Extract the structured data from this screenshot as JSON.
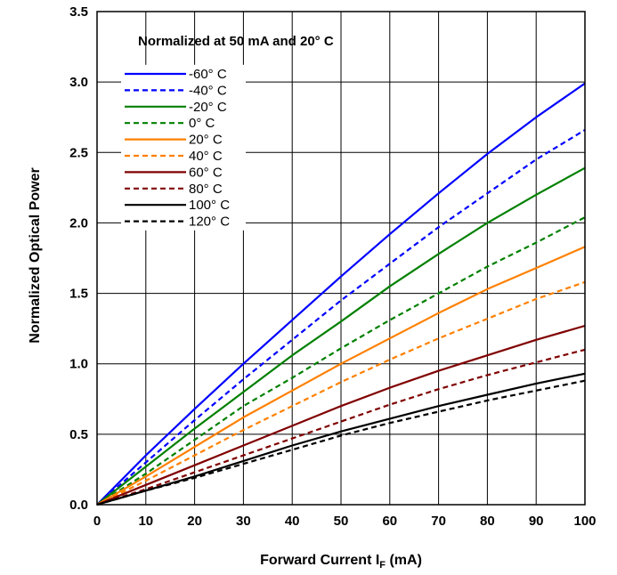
{
  "chart_data": {
    "type": "line",
    "title": "",
    "annotation": "Normalized at 50 mA and 20° C",
    "xlabel": "Forward Current I",
    "xlabel_sub": "F",
    "xlabel_unit": " (mA)",
    "ylabel": "Normalized Optical Power",
    "xlim": [
      0,
      100
    ],
    "ylim": [
      0,
      3.5
    ],
    "xticks": [
      0,
      10,
      20,
      30,
      40,
      50,
      60,
      70,
      80,
      90,
      100
    ],
    "yticks": [
      "0.0",
      "0.5",
      "1.0",
      "1.5",
      "2.0",
      "2.5",
      "3.0",
      "3.5"
    ],
    "grid": true,
    "legend_position": "upper-left",
    "x": [
      0,
      10,
      20,
      30,
      40,
      50,
      60,
      70,
      80,
      90,
      100
    ],
    "series": [
      {
        "name": "-60° C",
        "color": "#0000ff",
        "dash": "solid",
        "values": [
          0,
          0.35,
          0.68,
          1.0,
          1.31,
          1.62,
          1.92,
          2.21,
          2.49,
          2.75,
          2.99
        ]
      },
      {
        "name": "-40° C",
        "color": "#0000ff",
        "dash": "dashed",
        "values": [
          0,
          0.3,
          0.6,
          0.89,
          1.17,
          1.45,
          1.71,
          1.97,
          2.21,
          2.45,
          2.66
        ]
      },
      {
        "name": "-20° C",
        "color": "#008000",
        "dash": "solid",
        "values": [
          0,
          0.27,
          0.54,
          0.8,
          1.06,
          1.3,
          1.55,
          1.78,
          2.0,
          2.2,
          2.39
        ]
      },
      {
        "name": "0° C",
        "color": "#008000",
        "dash": "dashed",
        "values": [
          0,
          0.22,
          0.46,
          0.7,
          0.9,
          1.11,
          1.31,
          1.5,
          1.69,
          1.86,
          2.04
        ]
      },
      {
        "name": "20° C",
        "color": "#ff8000",
        "dash": "solid",
        "values": [
          0,
          0.2,
          0.41,
          0.62,
          0.81,
          1.0,
          1.18,
          1.36,
          1.53,
          1.68,
          1.83
        ]
      },
      {
        "name": "40° C",
        "color": "#ff8000",
        "dash": "dashed",
        "values": [
          0,
          0.17,
          0.35,
          0.53,
          0.7,
          0.87,
          1.03,
          1.18,
          1.32,
          1.46,
          1.58
        ]
      },
      {
        "name": "60° C",
        "color": "#800000",
        "dash": "solid",
        "values": [
          0,
          0.14,
          0.28,
          0.42,
          0.56,
          0.7,
          0.83,
          0.95,
          1.06,
          1.17,
          1.27
        ]
      },
      {
        "name": "80° C",
        "color": "#800000",
        "dash": "dashed",
        "values": [
          0,
          0.11,
          0.23,
          0.35,
          0.47,
          0.59,
          0.71,
          0.82,
          0.92,
          1.01,
          1.1
        ]
      },
      {
        "name": "100° C",
        "color": "#000000",
        "dash": "solid",
        "values": [
          0,
          0.1,
          0.2,
          0.31,
          0.42,
          0.52,
          0.61,
          0.7,
          0.78,
          0.86,
          0.93
        ]
      },
      {
        "name": "120° C",
        "color": "#000000",
        "dash": "dashed",
        "values": [
          0,
          0.1,
          0.19,
          0.29,
          0.39,
          0.49,
          0.58,
          0.66,
          0.74,
          0.81,
          0.88
        ]
      }
    ]
  }
}
